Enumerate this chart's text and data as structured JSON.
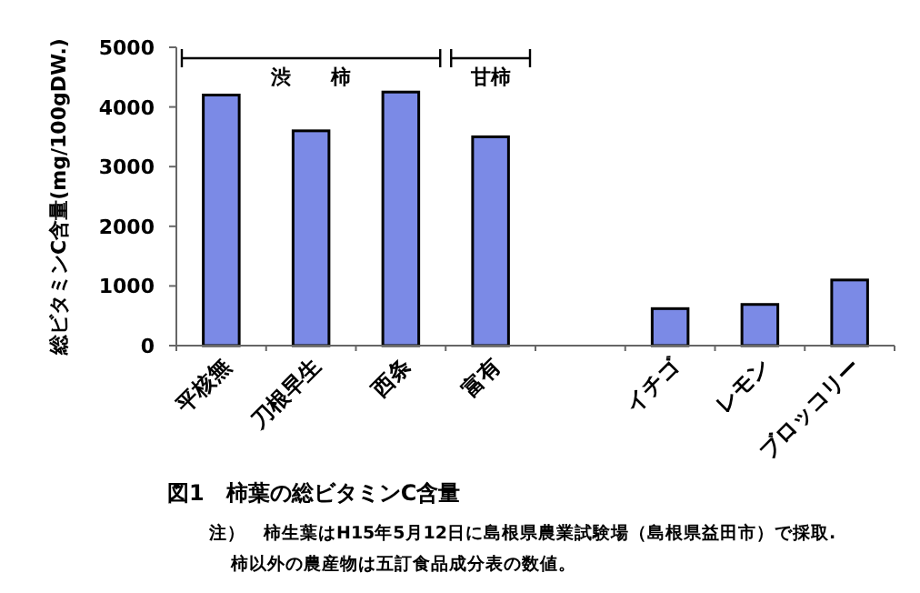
{
  "chart_data": {
    "type": "bar",
    "title": "図1　柿葉の総ビタミンC含量",
    "ylabel": "総ビタミンC含量(mg/100gDW.)",
    "categories": [
      "平核無",
      "刀根早生",
      "西条",
      "富有",
      null,
      "イチゴ",
      "レモン",
      "ブロッコリー"
    ],
    "values": [
      4200,
      3600,
      4250,
      3500,
      null,
      620,
      690,
      1100
    ],
    "color": "#7b8ae6",
    "ylim": [
      0,
      5000
    ],
    "yticks": [
      0,
      1000,
      2000,
      3000,
      4000,
      5000
    ],
    "grid": false,
    "annotations": [
      "渋　　柿",
      "甘柿",
      "注）　柿生葉はH15年5月12日に島根県農業試験場（島根県益田市）で採取.",
      "柿以外の農産物は五訂食品成分表の数値。"
    ]
  }
}
